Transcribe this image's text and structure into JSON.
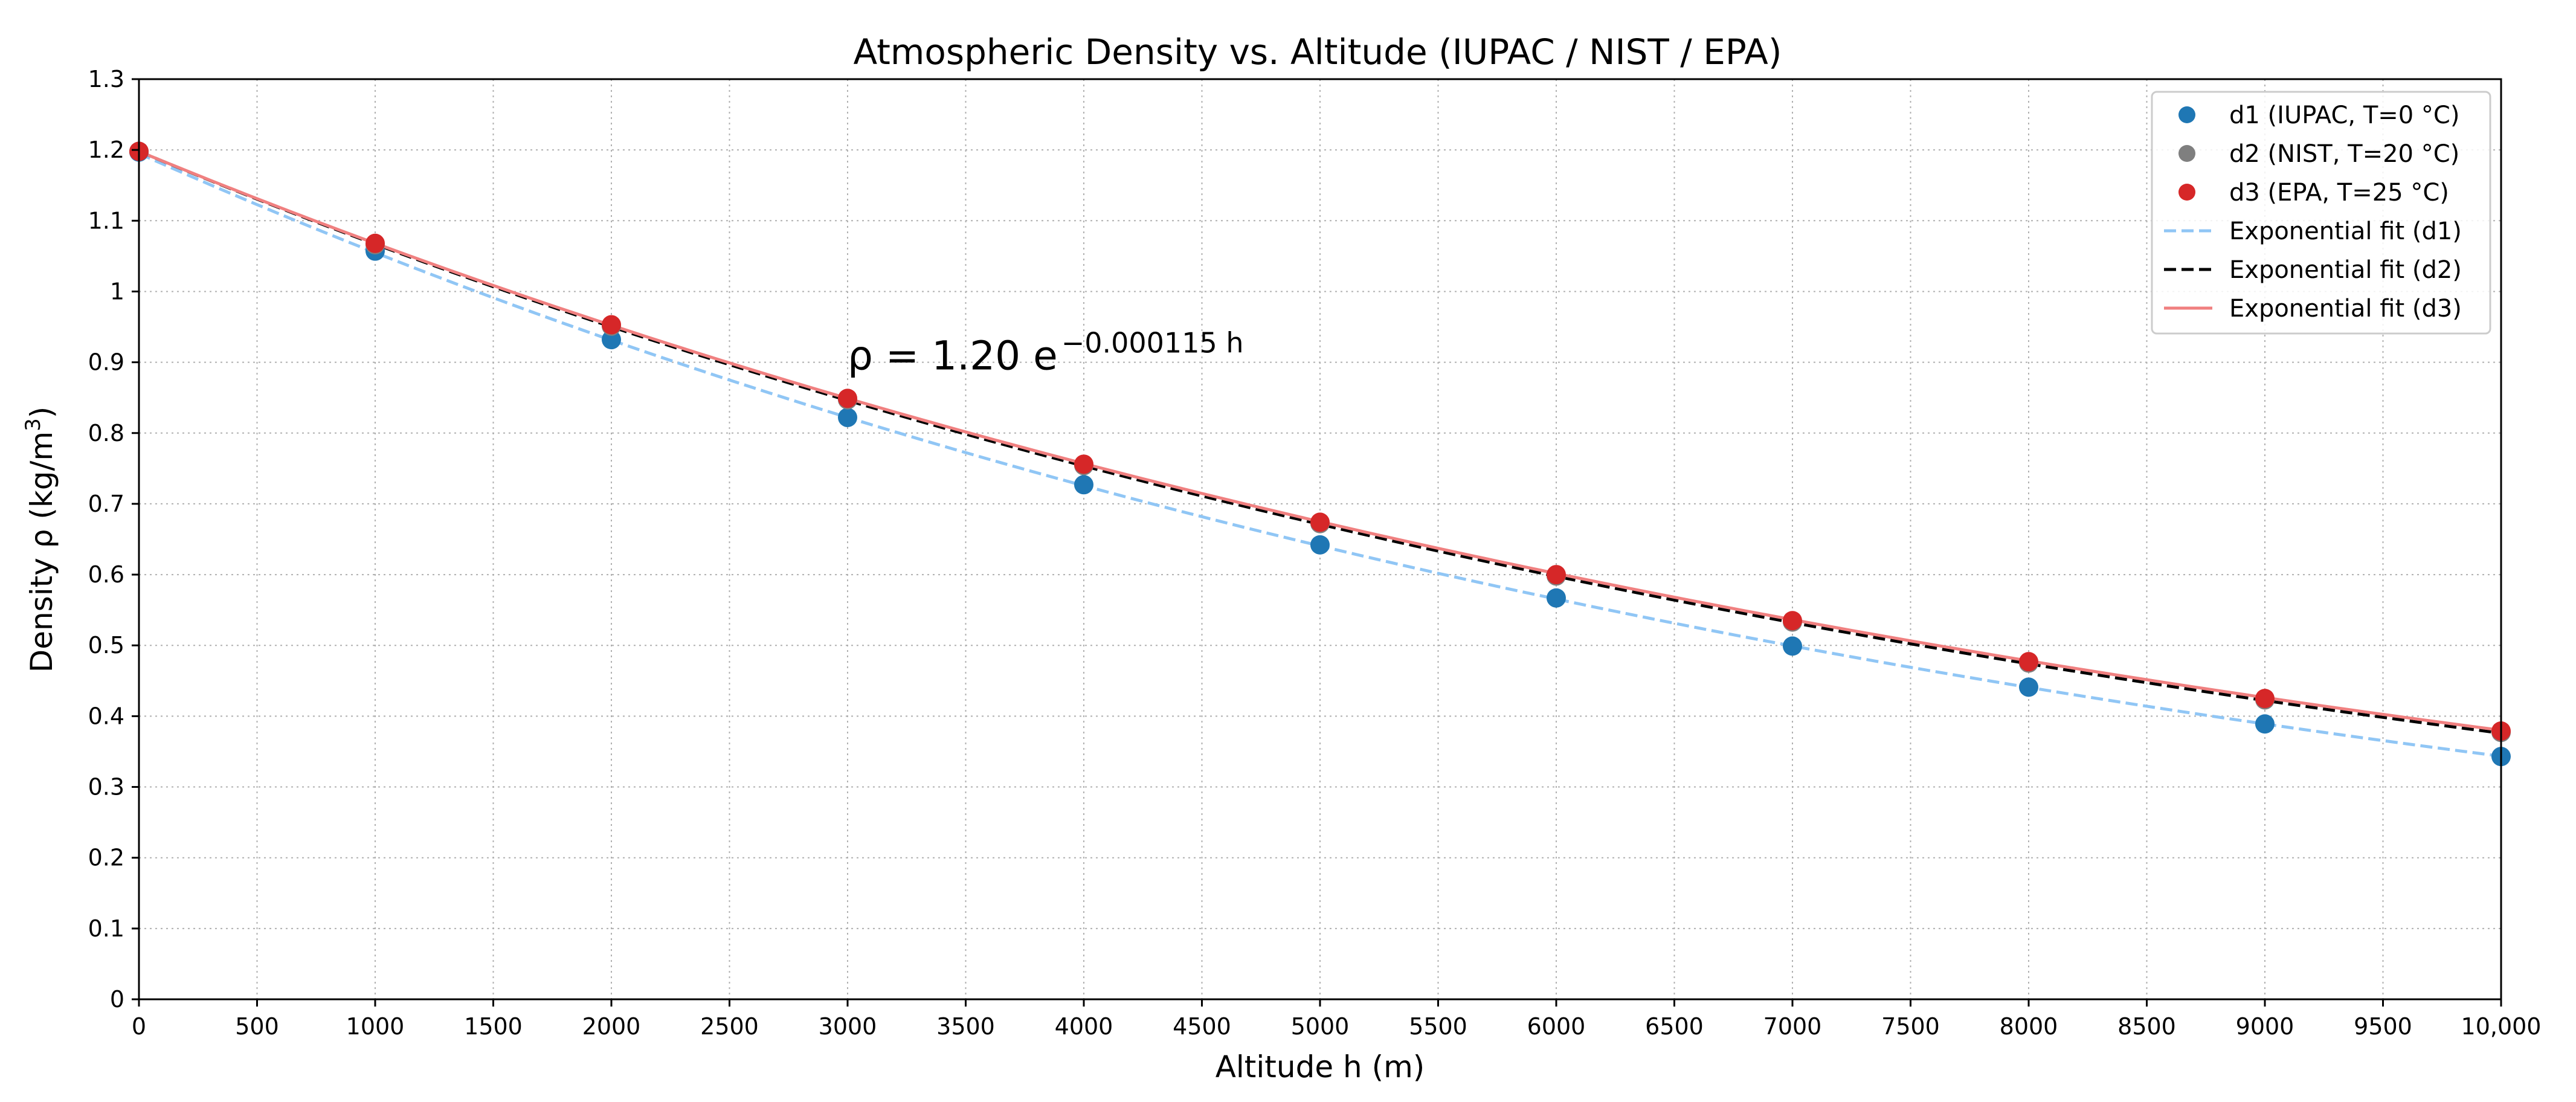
{
  "chart_data": {
    "type": "scatter",
    "title": "Atmospheric Density vs. Altitude (IUPAC / NIST / EPA)",
    "xlabel": "Altitude h (m)",
    "ylabel": "Density ρ (kg/m",
    "ylabel_sup": "3",
    "ylabel_close": ")",
    "xlim": [
      0,
      10000
    ],
    "ylim": [
      0,
      1.3
    ],
    "grid": true,
    "grid_style": "dotted",
    "legend_position": "top-right",
    "x_ticks": [
      0,
      500,
      1000,
      1500,
      2000,
      2500,
      3000,
      3500,
      4000,
      4500,
      5000,
      5500,
      6000,
      6500,
      7000,
      7500,
      8000,
      8500,
      9000,
      9500,
      10000
    ],
    "x_tick_labels": [
      "0",
      "500",
      "1000",
      "1500",
      "2000",
      "2500",
      "3000",
      "3500",
      "4000",
      "4500",
      "5000",
      "5500",
      "6000",
      "6500",
      "7000",
      "7500",
      "8000",
      "8500",
      "9000",
      "9500",
      "10,000"
    ],
    "y_ticks": [
      0,
      0.1,
      0.2,
      0.3,
      0.4,
      0.5,
      0.6,
      0.7,
      0.8,
      0.9,
      1.0,
      1.1,
      1.2,
      1.3
    ],
    "y_tick_labels": [
      "0",
      "0.1",
      "0.2",
      "0.3",
      "0.4",
      "0.5",
      "0.6",
      "0.7",
      "0.8",
      "0.9",
      "1",
      "1.1",
      "1.2",
      "1.3"
    ],
    "series": [
      {
        "name": "d1 (IUPAC, T=0 °C)",
        "kind": "scatter",
        "color": "#1f77b4",
        "x": [
          0,
          1000,
          2000,
          3000,
          4000,
          5000,
          6000,
          7000,
          8000,
          9000,
          10000
        ],
        "values": [
          1.197,
          1.057,
          0.932,
          0.822,
          0.727,
          0.642,
          0.567,
          0.499,
          0.441,
          0.389,
          0.343
        ]
      },
      {
        "name": "d2 (NIST, T=20 °C)",
        "kind": "scatter",
        "color": "#7f7f7f",
        "x": [
          0,
          1000,
          2000,
          3000,
          4000,
          5000,
          6000,
          7000,
          8000,
          9000,
          10000
        ],
        "values": [
          1.198,
          1.066,
          0.951,
          0.847,
          0.754,
          0.672,
          0.598,
          0.533,
          0.475,
          0.423,
          0.377
        ]
      },
      {
        "name": "d3 (EPA, T=25 °C)",
        "kind": "scatter",
        "color": "#d62728",
        "x": [
          0,
          1000,
          2000,
          3000,
          4000,
          5000,
          6000,
          7000,
          8000,
          9000,
          10000
        ],
        "values": [
          1.198,
          1.068,
          0.953,
          0.849,
          0.756,
          0.674,
          0.6,
          0.535,
          0.477,
          0.425,
          0.379
        ]
      },
      {
        "name": "Exponential fit (d1)",
        "kind": "line",
        "color": "#90c6f5",
        "dash": "dashed",
        "a": 1.195,
        "b": 0.0001247
      },
      {
        "name": "Exponential fit (d2)",
        "kind": "line",
        "color": "#000000",
        "dash": "dashed",
        "a": 1.198,
        "b": 0.0001159
      },
      {
        "name": "Exponential fit (d3)",
        "kind": "line",
        "color": "#f08080",
        "dash": "solid",
        "a": 1.198,
        "b": 0.0001148
      }
    ],
    "annotation": {
      "x": 3000,
      "y": 0.89,
      "main": "ρ = 1.20 e",
      "sup": "−0.000115 h"
    }
  }
}
